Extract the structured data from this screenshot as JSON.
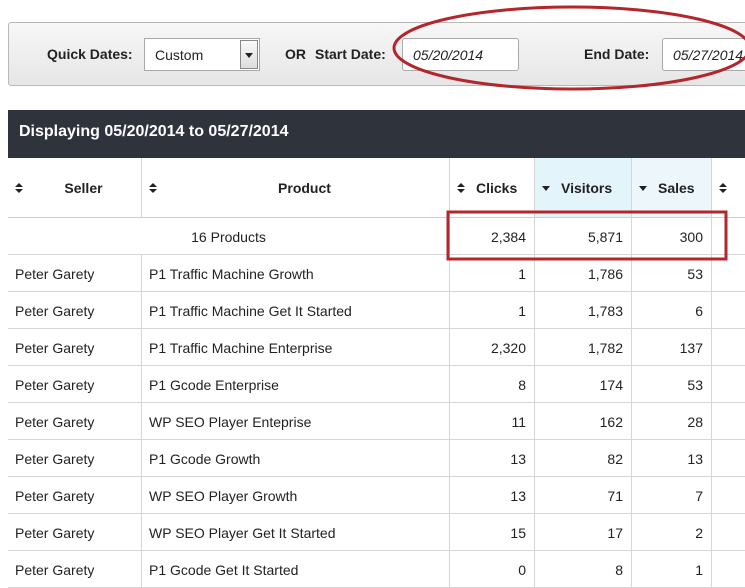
{
  "filters": {
    "quick_dates_label": "Quick Dates:",
    "quick_dates_value": "Custom",
    "or": "OR",
    "start_label": "Start Date:",
    "start_value": "05/20/2014",
    "end_label": "End Date:",
    "end_value": "05/27/2014"
  },
  "table": {
    "caption": "Displaying 05/20/2014 to 05/27/2014",
    "columns": [
      "Seller",
      "Product",
      "Clicks",
      "Visitors",
      "Sales"
    ],
    "summary": {
      "label": "16 Products",
      "values": [
        "2,384",
        "5,871",
        "300"
      ]
    },
    "rows": [
      [
        "Peter Garety",
        "P1 Traffic Machine Growth",
        "1",
        "1,786",
        "53"
      ],
      [
        "Peter Garety",
        "P1 Traffic Machine Get It Started",
        "1",
        "1,783",
        "6"
      ],
      [
        "Peter Garety",
        "P1 Traffic Machine Enterprise",
        "2,320",
        "1,782",
        "137"
      ],
      [
        "Peter Garety",
        "P1 Gcode Enterprise",
        "8",
        "174",
        "53"
      ],
      [
        "Peter Garety",
        "WP SEO Player Enteprise",
        "11",
        "162",
        "28"
      ],
      [
        "Peter Garety",
        "P1 Gcode Growth",
        "13",
        "82",
        "13"
      ],
      [
        "Peter Garety",
        "WP SEO Player Growth",
        "13",
        "71",
        "7"
      ],
      [
        "Peter Garety",
        "WP SEO Player Get It Started",
        "15",
        "17",
        "2"
      ],
      [
        "Peter Garety",
        "P1 Gcode Get It Started",
        "0",
        "8",
        "1"
      ]
    ]
  }
}
